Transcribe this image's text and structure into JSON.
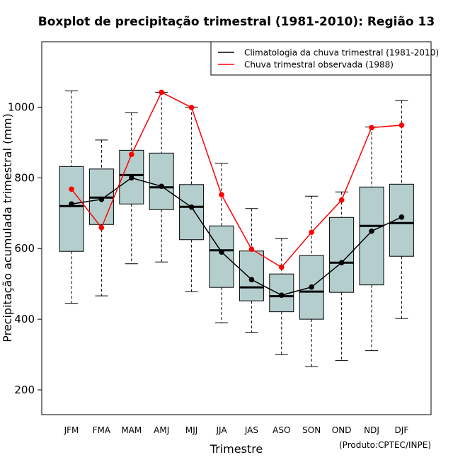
{
  "chart_data": {
    "type": "boxplot",
    "title": "Boxplot de precipitação trimestral (1981-2010): Região 13",
    "xlabel": "Trimestre",
    "ylabel": "Precipitação acumulada trimestral (mm)",
    "ylim": [
      130,
      1185
    ],
    "yticks": [
      200,
      400,
      600,
      800,
      1000
    ],
    "categories": [
      "JFM",
      "FMA",
      "MAM",
      "AMJ",
      "MJJ",
      "JJA",
      "JAS",
      "ASO",
      "SON",
      "OND",
      "NDJ",
      "DJF"
    ],
    "boxes": [
      {
        "min": 445,
        "q1": 592,
        "median": 720,
        "q3": 832,
        "max": 1046
      },
      {
        "min": 466,
        "q1": 668,
        "median": 744,
        "q3": 825,
        "max": 907
      },
      {
        "min": 557,
        "q1": 726,
        "median": 808,
        "q3": 878,
        "max": 984
      },
      {
        "min": 562,
        "q1": 710,
        "median": 773,
        "q3": 870,
        "max": 1042
      },
      {
        "min": 478,
        "q1": 625,
        "median": 718,
        "q3": 781,
        "max": 1000
      },
      {
        "min": 390,
        "q1": 490,
        "median": 595,
        "q3": 664,
        "max": 841
      },
      {
        "min": 363,
        "q1": 452,
        "median": 490,
        "q3": 593,
        "max": 713
      },
      {
        "min": 300,
        "q1": 421,
        "median": 465,
        "q3": 528,
        "max": 628
      },
      {
        "min": 266,
        "q1": 400,
        "median": 478,
        "q3": 580,
        "max": 748
      },
      {
        "min": 283,
        "q1": 476,
        "median": 560,
        "q3": 688,
        "max": 760
      },
      {
        "min": 311,
        "q1": 497,
        "median": 664,
        "q3": 774,
        "max": 944
      },
      {
        "min": 402,
        "q1": 578,
        "median": 672,
        "q3": 782,
        "max": 1018
      }
    ],
    "series": [
      {
        "name": "Climatologia da chuva trimestral (1981-2010)",
        "color": "#000000",
        "values": [
          726,
          739,
          800,
          776,
          717,
          590,
          512,
          468,
          491,
          560,
          649,
          689
        ]
      },
      {
        "name": "Chuva trimestral observada (1988)",
        "color": "#ff0000",
        "values": [
          768,
          659,
          866,
          1042,
          999,
          752,
          598,
          547,
          646,
          737,
          942,
          949
        ]
      }
    ],
    "box_fill": "#b4cece",
    "legend_position": "top-right",
    "credit": "(Produto:CPTEC/INPE)"
  }
}
